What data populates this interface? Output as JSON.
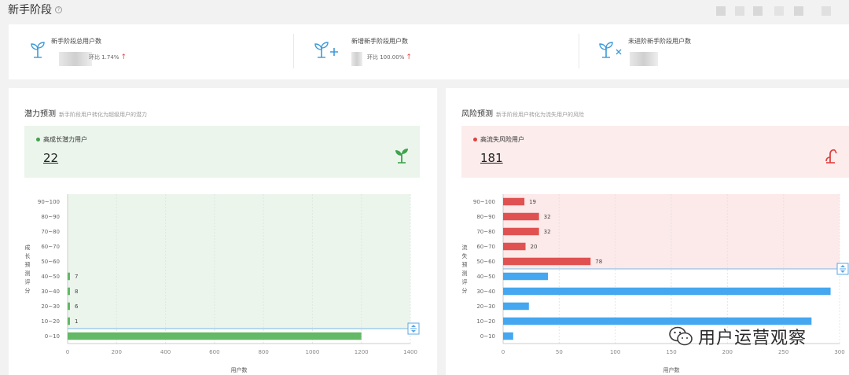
{
  "page": {
    "title": "新手阶段",
    "help_icon": "question-circle-icon"
  },
  "summary": {
    "stats": [
      {
        "label": "新手阶段总用户数",
        "compare": "环比 1.74%",
        "trend_icon": "arrow-up-icon",
        "icon": "sprout-icon"
      },
      {
        "label": "新增新手阶段用户数",
        "compare": "环比 100.00%",
        "trend_icon": "arrow-up-icon",
        "icon": "sprout-plus-icon"
      },
      {
        "label": "未进阶新手阶段用户数",
        "compare": "",
        "trend_icon": "",
        "icon": "sprout-x-icon"
      }
    ]
  },
  "potential": {
    "title": "潜力预测",
    "subtitle": "新手阶段用户转化为超级用户的潜力",
    "tag": "高成长潜力用户",
    "count": "22",
    "icon": "sprout-icon",
    "accent": "#5cb85c"
  },
  "risk": {
    "title": "风险预测",
    "subtitle": "新手阶段用户转化为流失用户的风险",
    "tag": "高流失风险用户",
    "count": "181",
    "icon": "wilted-plant-icon",
    "accent": "#e04f4f"
  },
  "chart_data": [
    {
      "type": "bar",
      "orientation": "horizontal",
      "ylabel": "成长预测评分",
      "xlabel": "用户数",
      "categories": [
        "0~10",
        "10~20",
        "20~30",
        "30~40",
        "40~50",
        "50~60",
        "60~70",
        "70~80",
        "80~90",
        "90~100"
      ],
      "values": [
        1200,
        1,
        6,
        8,
        7,
        0,
        0,
        0,
        0,
        0
      ],
      "data_labels": [
        "",
        "1",
        "6",
        "8",
        "7",
        "",
        "",
        "",
        "",
        ""
      ],
      "xlim": [
        0,
        1400
      ],
      "xticks": [
        "0",
        "200",
        "400",
        "600",
        "800",
        "1000",
        "1200",
        "1400"
      ],
      "bar_color": "#63b965",
      "highlight_region": "10~20 到 90~100",
      "highlight_color": "#ebf5ec",
      "grid": true
    },
    {
      "type": "bar",
      "orientation": "horizontal",
      "ylabel": "流失预测评分",
      "xlabel": "用户数",
      "categories": [
        "0~10",
        "10~20",
        "20~30",
        "30~40",
        "40~50",
        "50~60",
        "60~70",
        "70~80",
        "80~90",
        "90~100"
      ],
      "values": [
        9,
        275,
        23,
        292,
        40,
        78,
        20,
        32,
        32,
        19
      ],
      "data_labels": [
        "",
        "",
        "",
        "",
        "",
        "78",
        "20",
        "32",
        "32",
        "19"
      ],
      "xlim": [
        0,
        300
      ],
      "xticks": [
        "0",
        "50",
        "100",
        "150",
        "200",
        "250",
        "300"
      ],
      "bar_colors": [
        "#45a7f0",
        "#45a7f0",
        "#45a7f0",
        "#45a7f0",
        "#45a7f0",
        "#e05252",
        "#e05252",
        "#e05252",
        "#e05252",
        "#e05252"
      ],
      "highlight_region": "50~60 到 90~100",
      "highlight_color": "#fce9e9",
      "grid": true
    }
  ],
  "watermark": {
    "text": "用户运营观察",
    "icon": "wechat-icon"
  }
}
